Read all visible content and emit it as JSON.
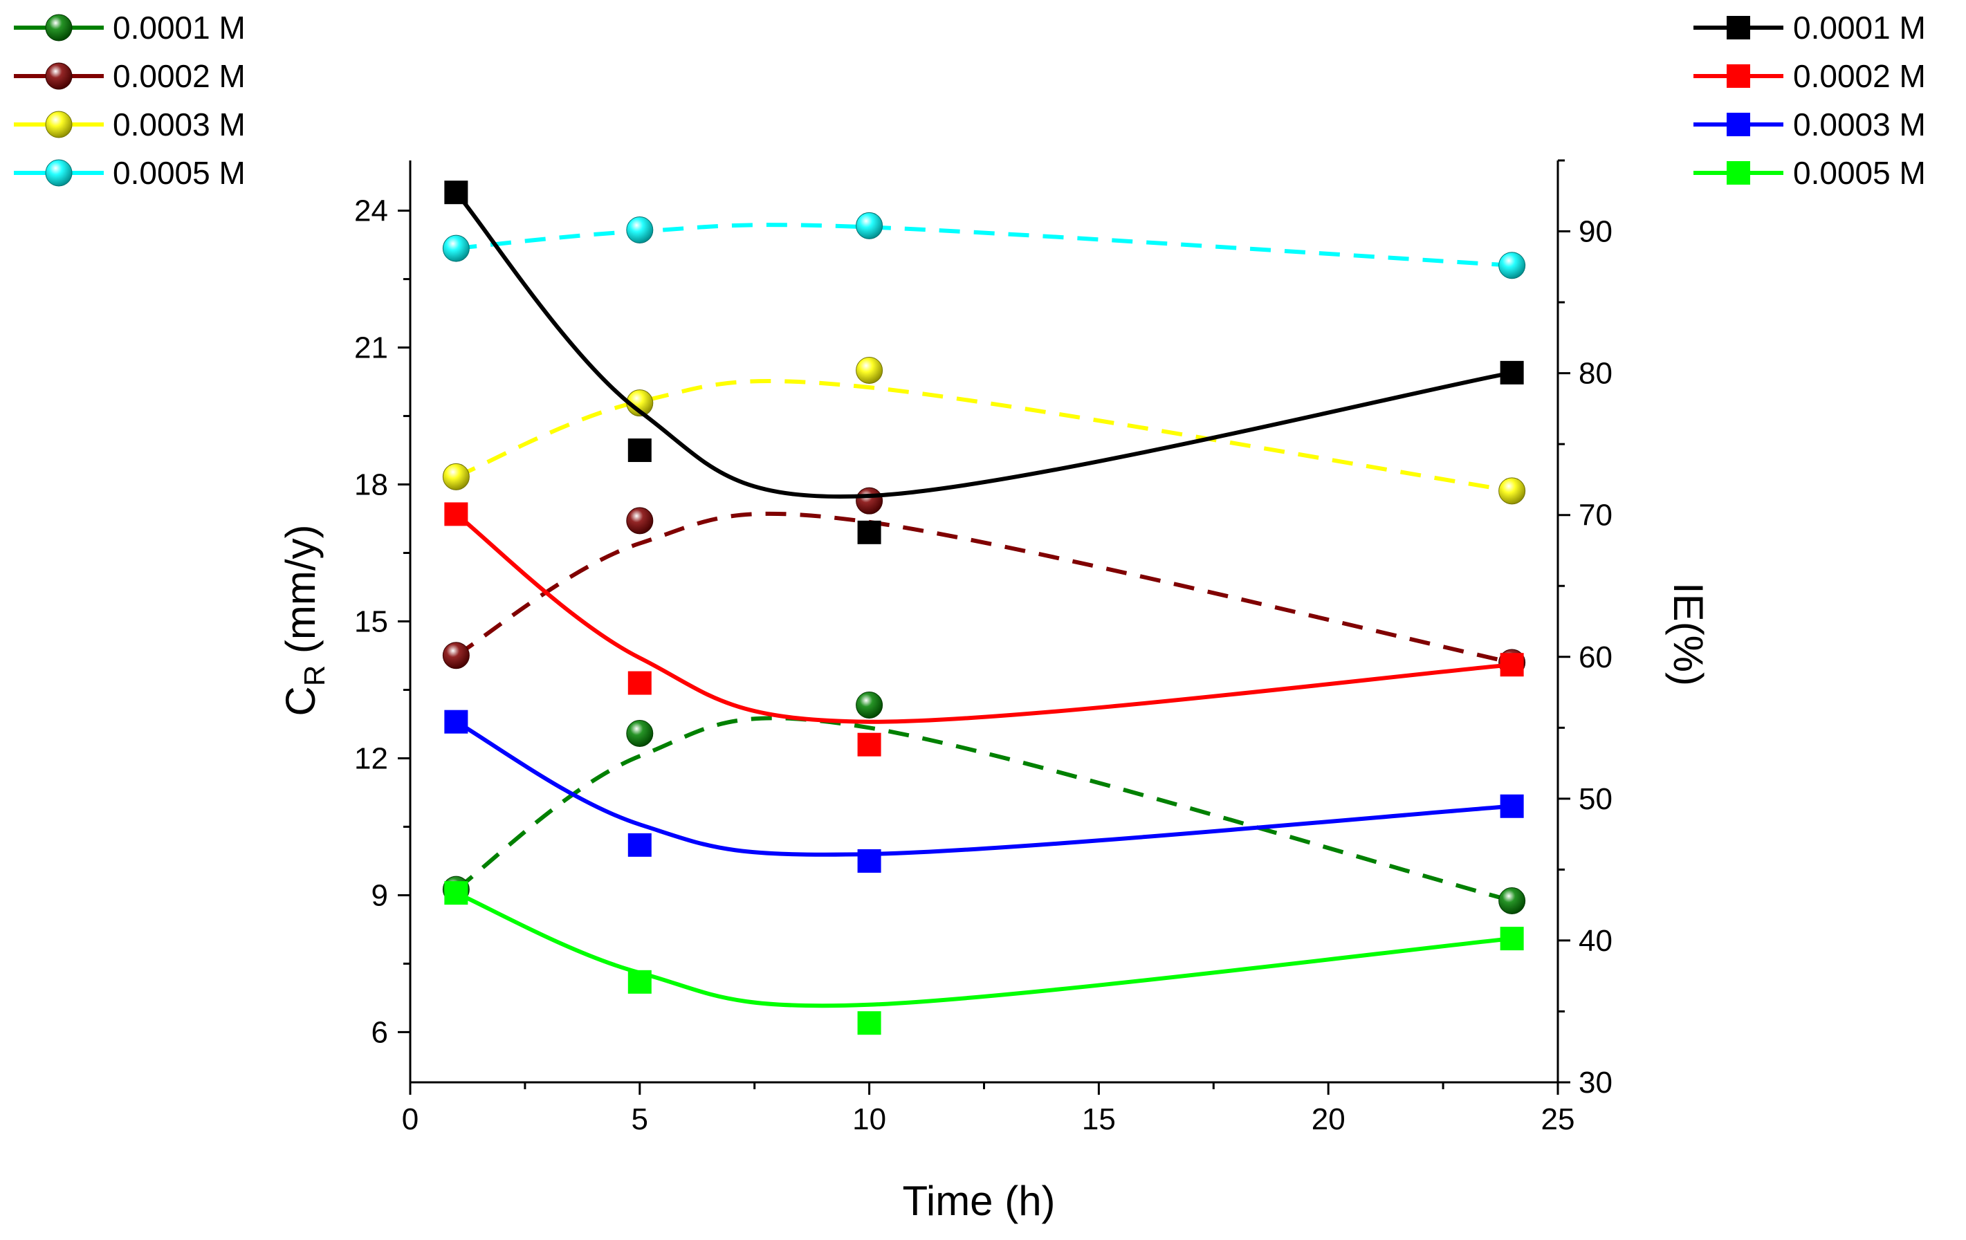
{
  "chart_data": {
    "type": "line",
    "title": "",
    "xlabel": "Time (h)",
    "ylabel": {
      "main": "C",
      "sub": "R",
      "unit": " (mm/y)"
    },
    "y2label": "IE(%)",
    "xlim": [
      0,
      25
    ],
    "ylim": [
      4.9,
      25.1
    ],
    "y2lim": [
      30,
      95
    ],
    "xticks": [
      0,
      5,
      10,
      15,
      20,
      25
    ],
    "yticks": [
      6,
      9,
      12,
      15,
      18,
      21,
      24
    ],
    "y2ticks": [
      30,
      40,
      50,
      60,
      70,
      80,
      90
    ],
    "series_cr": [
      {
        "name": "0.0001 M",
        "color": "#000000",
        "x": [
          1,
          5,
          10,
          24
        ],
        "y": [
          24.4,
          18.75,
          16.95,
          20.45
        ],
        "fit": [
          24.4,
          19.6,
          17.75,
          20.45
        ]
      },
      {
        "name": "0.0002 M",
        "color": "#ff0000",
        "x": [
          1,
          5,
          10,
          24
        ],
        "y": [
          17.35,
          13.65,
          12.3,
          14.05
        ],
        "fit": [
          17.35,
          14.2,
          12.8,
          14.05
        ]
      },
      {
        "name": "0.0003 M",
        "color": "#0000ff",
        "x": [
          1,
          5,
          10,
          24
        ],
        "y": [
          12.8,
          10.1,
          9.75,
          10.95
        ],
        "fit": [
          12.8,
          10.55,
          9.9,
          10.95
        ]
      },
      {
        "name": "0.0005 M",
        "color": "#00ff00",
        "x": [
          1,
          5,
          10,
          24
        ],
        "y": [
          9.05,
          7.1,
          6.2,
          8.05
        ],
        "fit": [
          9.05,
          7.3,
          6.6,
          8.05
        ]
      }
    ],
    "series_ie": [
      {
        "name": "0.0001 M",
        "color": "#008000",
        "x": [
          1,
          5,
          10,
          24
        ],
        "y": [
          43.6,
          54.6,
          56.6,
          42.8
        ],
        "fit": [
          43.6,
          53.0,
          55.0,
          42.8
        ]
      },
      {
        "name": "0.0002 M",
        "color": "#800000",
        "x": [
          1,
          5,
          10,
          24
        ],
        "y": [
          60.1,
          69.6,
          71.0,
          59.6
        ],
        "fit": [
          60.1,
          68.0,
          69.5,
          59.6
        ]
      },
      {
        "name": "0.0003 M",
        "color": "#ffff00",
        "x": [
          1,
          5,
          10,
          24
        ],
        "y": [
          72.7,
          77.9,
          80.2,
          71.7
        ],
        "fit": [
          72.7,
          78.0,
          79.0,
          71.7
        ]
      },
      {
        "name": "0.0005 M",
        "color": "#00ffff",
        "x": [
          1,
          5,
          10,
          24
        ],
        "y": [
          88.8,
          90.1,
          90.4,
          87.6
        ],
        "fit": [
          88.8,
          90.0,
          90.3,
          87.6
        ]
      }
    ],
    "legend_left_placement": "top-left",
    "legend_right_placement": "top-right"
  }
}
